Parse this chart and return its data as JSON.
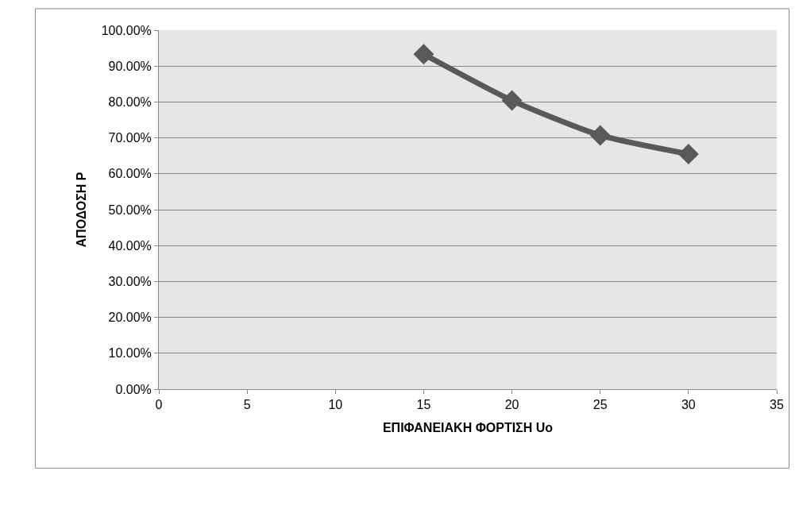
{
  "chart_data": {
    "type": "line",
    "xlabel": "ΕΠΙΦΑΝΕΙΑΚΗ ΦΟΡΤΙΣΗ Uo",
    "ylabel": "ΑΠΟΔΟΣΗ Ρ",
    "x": [
      15,
      20,
      25,
      30
    ],
    "series": [
      {
        "color": "#595959",
        "values": [
          93.3,
          80.4,
          70.7,
          65.5
        ]
      }
    ],
    "xlim": [
      0,
      35
    ],
    "xticks": [
      0,
      5,
      10,
      15,
      20,
      25,
      30,
      35
    ],
    "ylim": [
      0,
      100
    ],
    "yticks": [
      {
        "value": 0,
        "label": "0.00%"
      },
      {
        "value": 10,
        "label": "10.00%"
      },
      {
        "value": 20,
        "label": "20.00%"
      },
      {
        "value": 30,
        "label": "30.00%"
      },
      {
        "value": 40,
        "label": "40.00%"
      },
      {
        "value": 50,
        "label": "50.00%"
      },
      {
        "value": 60,
        "label": "60.00%"
      },
      {
        "value": 70,
        "label": "70.00%"
      },
      {
        "value": 80,
        "label": "80.00%"
      },
      {
        "value": 90,
        "label": "90.00%"
      },
      {
        "value": 100,
        "label": "100.00%"
      }
    ],
    "grid": "y",
    "marker": "diamond",
    "line_style": "solid",
    "legend": false
  }
}
